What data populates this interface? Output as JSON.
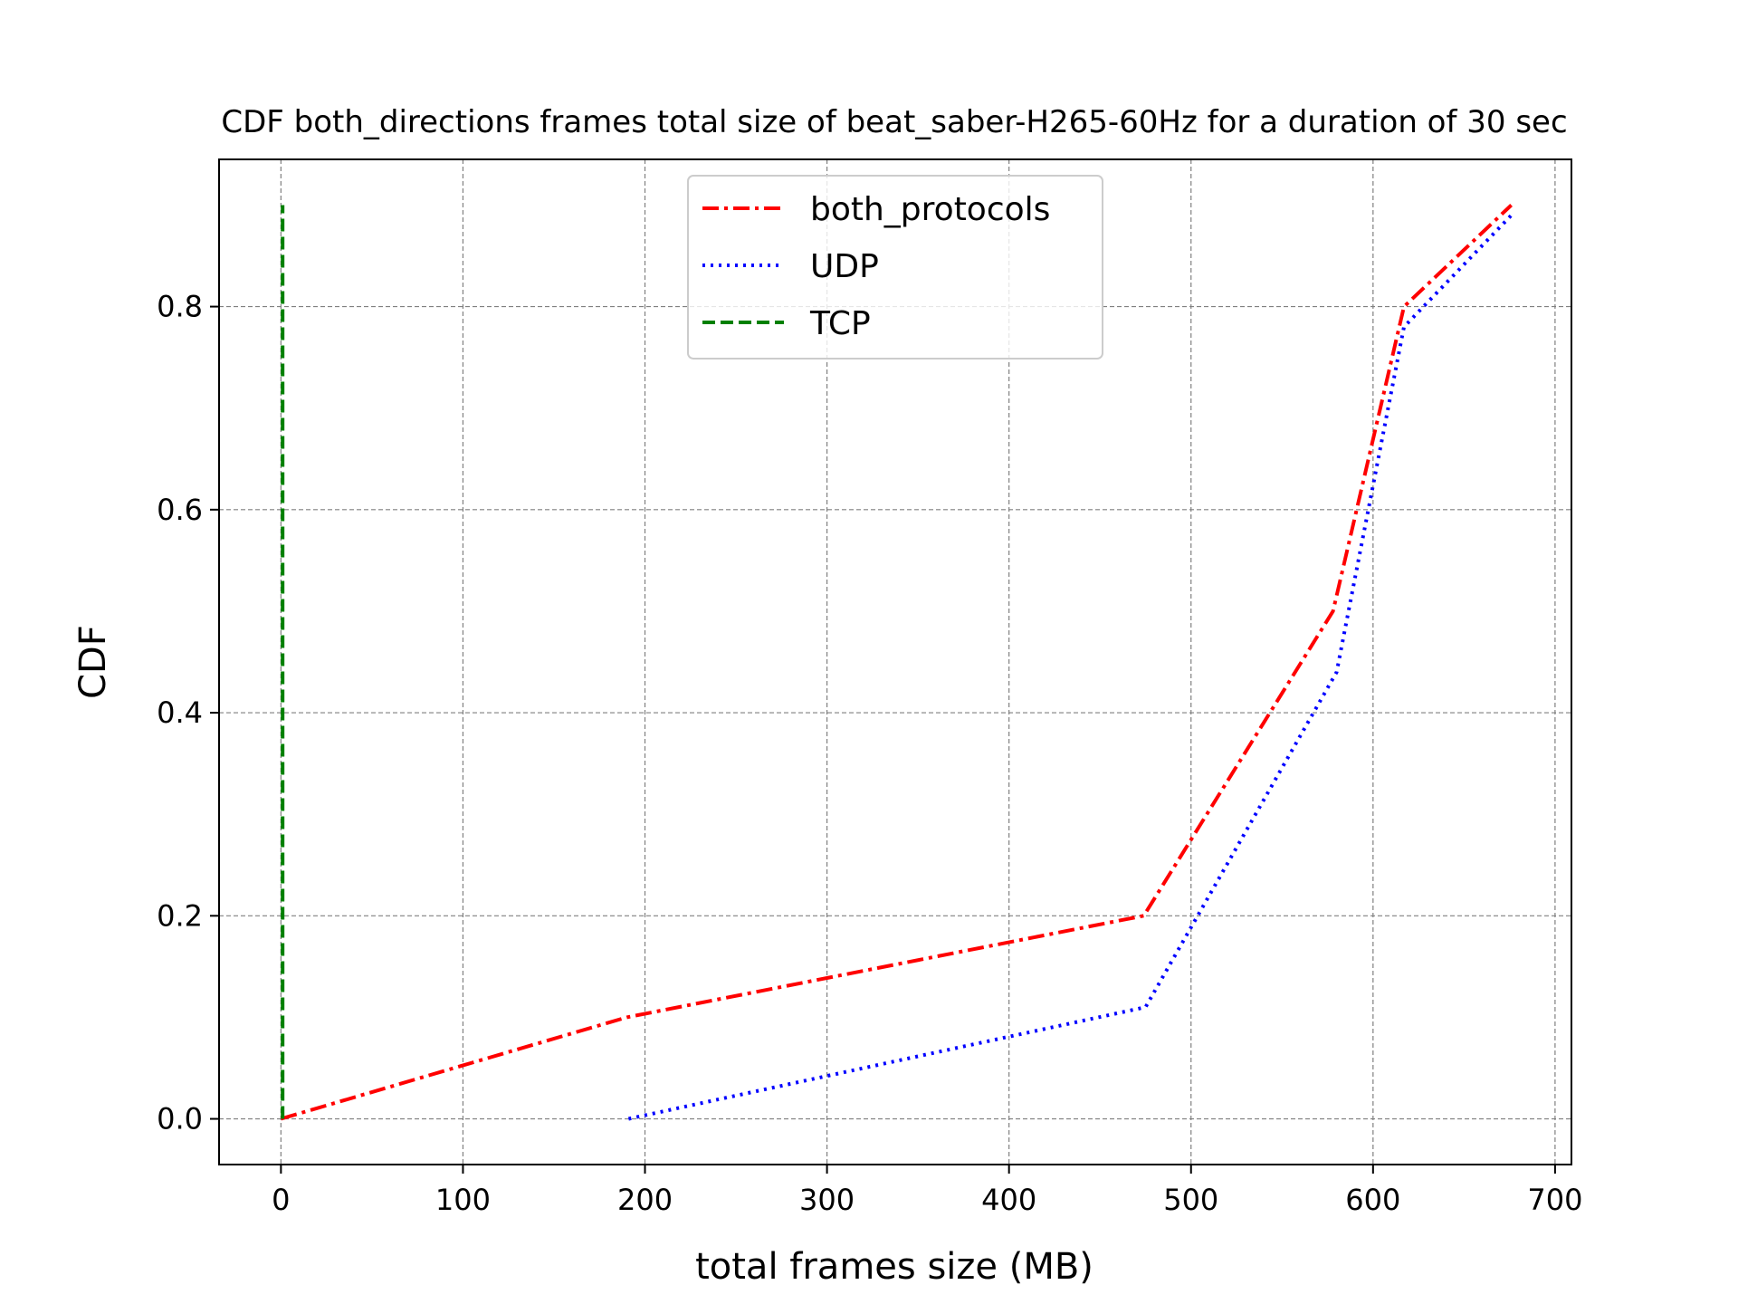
{
  "chart_data": {
    "type": "line",
    "title": "CDF both_directions frames total size of beat_saber-H265-60Hz for a duration of 30 sec",
    "xlabel": "total frames size (MB)",
    "ylabel": "CDF",
    "xlim": [
      -34,
      709
    ],
    "ylim": [
      -0.045,
      0.945
    ],
    "xticks": [
      0,
      100,
      200,
      300,
      400,
      500,
      600,
      700
    ],
    "yticks": [
      0.0,
      0.2,
      0.4,
      0.6,
      0.8
    ],
    "xtick_labels": [
      "0",
      "100",
      "200",
      "300",
      "400",
      "500",
      "600",
      "700"
    ],
    "ytick_labels": [
      "0.0",
      "0.2",
      "0.4",
      "0.6",
      "0.8"
    ],
    "grid": true,
    "legend_position": "upper center",
    "series": [
      {
        "name": "both_protocols",
        "color": "#ff0000",
        "style": "dashdot",
        "x": [
          0,
          190,
          474,
          578,
          617,
          676
        ],
        "y": [
          0.0,
          0.1,
          0.2,
          0.5,
          0.8,
          0.9
        ]
      },
      {
        "name": "UDP",
        "color": "#0000ff",
        "style": "dotted",
        "x": [
          191,
          475,
          580,
          617,
          676
        ],
        "y": [
          0.0,
          0.11,
          0.44,
          0.78,
          0.89
        ]
      },
      {
        "name": "TCP",
        "color": "#008000",
        "style": "dashed",
        "x": [
          0.9,
          0.9
        ],
        "y": [
          0.0,
          0.9
        ]
      }
    ]
  }
}
